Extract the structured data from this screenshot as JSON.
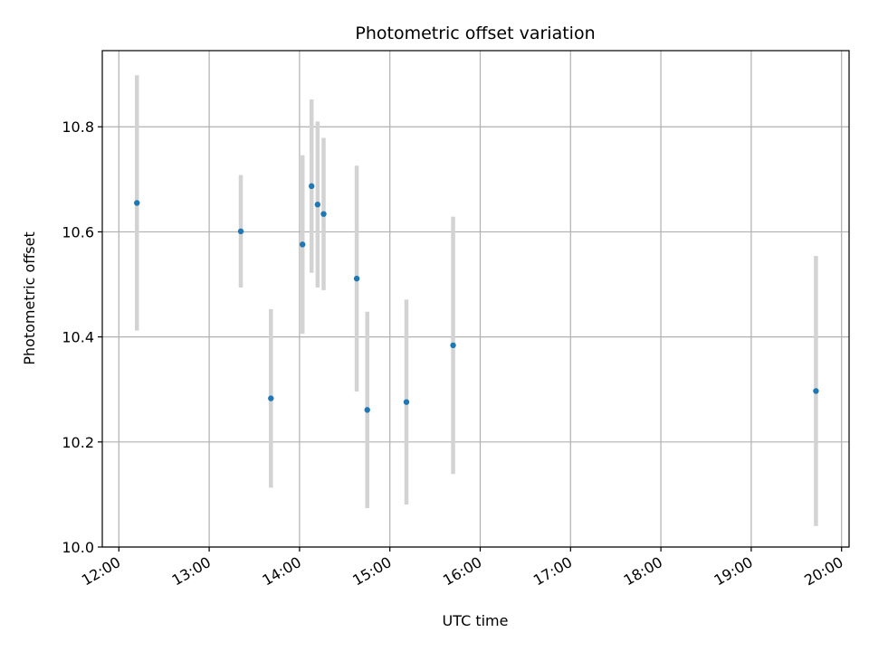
{
  "chart_data": {
    "type": "scatter",
    "title": "Photometric offset variation",
    "xlabel": "UTC time",
    "ylabel": "Photometric offset",
    "x_tick_labels": [
      "12:00",
      "13:00",
      "14:00",
      "15:00",
      "16:00",
      "17:00",
      "18:00",
      "19:00",
      "20:00"
    ],
    "x_ticks": [
      "12:00",
      "13:00",
      "14:00",
      "15:00",
      "16:00",
      "17:00",
      "18:00",
      "19:00",
      "20:00"
    ],
    "y_ticks": [
      10.0,
      10.2,
      10.4,
      10.6,
      10.8
    ],
    "y_tick_labels": [
      "10.0",
      "10.2",
      "10.4",
      "10.6",
      "10.8"
    ],
    "xlim": [
      "11:49",
      "20:05"
    ],
    "ylim": [
      10.0,
      10.945
    ],
    "grid": true,
    "points": [
      {
        "x": "12:12",
        "y": 10.655,
        "yerr_low": 10.412,
        "yerr_high": 10.898
      },
      {
        "x": "13:21",
        "y": 10.601,
        "yerr_low": 10.494,
        "yerr_high": 10.708
      },
      {
        "x": "13:41",
        "y": 10.283,
        "yerr_low": 10.113,
        "yerr_high": 10.453
      },
      {
        "x": "14:02",
        "y": 10.576,
        "yerr_low": 10.406,
        "yerr_high": 10.746
      },
      {
        "x": "14:08",
        "y": 10.687,
        "yerr_low": 10.522,
        "yerr_high": 10.852
      },
      {
        "x": "14:12",
        "y": 10.652,
        "yerr_low": 10.494,
        "yerr_high": 10.81
      },
      {
        "x": "14:16",
        "y": 10.634,
        "yerr_low": 10.489,
        "yerr_high": 10.779
      },
      {
        "x": "14:38",
        "y": 10.511,
        "yerr_low": 10.296,
        "yerr_high": 10.726
      },
      {
        "x": "14:45",
        "y": 10.261,
        "yerr_low": 10.074,
        "yerr_high": 10.448
      },
      {
        "x": "15:11",
        "y": 10.276,
        "yerr_low": 10.081,
        "yerr_high": 10.471
      },
      {
        "x": "15:42",
        "y": 10.384,
        "yerr_low": 10.139,
        "yerr_high": 10.629
      },
      {
        "x": "19:43",
        "y": 10.297,
        "yerr_low": 10.04,
        "yerr_high": 10.554
      }
    ],
    "colors": {
      "point": "#1f77b4",
      "errorbar": "#d3d3d3",
      "grid": "#b0b0b0"
    }
  }
}
